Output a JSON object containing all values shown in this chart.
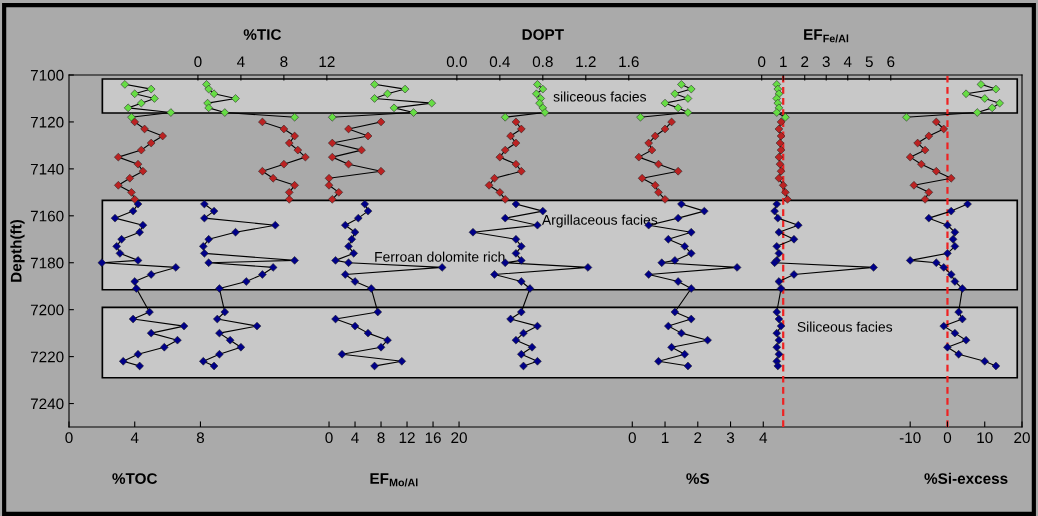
{
  "chart_data": [
    {
      "type": "line",
      "marker": "diamond",
      "xlim": [
        0,
        58
      ],
      "xticks": [
        0,
        4,
        8
      ],
      "xlabel": "%TOC",
      "ylabel": "Depth(ft)",
      "ylim": [
        7250,
        7100
      ],
      "yticks": [
        7100,
        7120,
        7140,
        7160,
        7180,
        7200,
        7220,
        7240
      ],
      "bands": [
        {
          "axis": "y",
          "from": 7101.7,
          "to": 7116.2,
          "color": "#c8c8c8"
        },
        {
          "axis": "y",
          "from": 7153.4,
          "to": 7191.5,
          "color": "#c8c8c8"
        },
        {
          "axis": "y",
          "from": 7199,
          "to": 7229,
          "color": "#c8c8c8"
        }
      ],
      "series": [
        {
          "color": "#66dd44",
          "x": [
            3.4,
            5.0,
            4.0,
            5.2,
            4.4,
            3.6,
            6.2,
            3.8
          ],
          "values": [
            7104,
            7106,
            7108,
            7110,
            7112,
            7114,
            7116,
            7118
          ]
        },
        {
          "color": "#bb2222",
          "x": [
            4.0,
            4.6,
            5.7,
            5.0,
            4.4,
            3.0,
            4.2,
            4.5,
            3.7,
            3.0,
            3.8,
            4.0
          ],
          "values": [
            7120,
            7123,
            7126,
            7129,
            7132,
            7135,
            7138,
            7141,
            7144,
            7147,
            7150,
            7153
          ]
        },
        {
          "color": "#000088",
          "x": [
            4.2,
            3.9,
            2.8,
            4.5,
            4.3,
            3.2,
            2.9,
            3.1,
            4.2,
            2.0,
            6.5,
            5.0,
            4.0,
            4.1,
            4.9,
            3.9,
            7.0,
            5.0,
            6.6,
            5.8,
            4.2,
            3.3,
            4.3
          ],
          "values": [
            7155,
            7158,
            7161,
            7164,
            7167,
            7170,
            7173,
            7176,
            7179,
            7180,
            7182,
            7185,
            7188,
            7191,
            7201,
            7204,
            7207,
            7210,
            7213,
            7216,
            7219,
            7222,
            7224
          ]
        }
      ]
    },
    {
      "type": "line",
      "marker": "diamond",
      "tick_labels": "x",
      "xlim": [
        -12,
        76.7
      ],
      "xticks": [
        0,
        4,
        8,
        12
      ],
      "xlabel": "%TIC",
      "ylim": [
        7250,
        7100
      ],
      "annotations": [
        "Ferroan dolomite rich"
      ],
      "series": [
        {
          "color": "#66dd44",
          "x": [
            0.8,
            1.0,
            1.5,
            3.5,
            0.9,
            1.0,
            2.5,
            9.0
          ],
          "values": [
            7104,
            7106,
            7108,
            7110,
            7112,
            7114,
            7116,
            7118
          ]
        },
        {
          "color": "#bb2222",
          "x": [
            6.0,
            8.0,
            9.0,
            8.5,
            9.3,
            10.0,
            8.0,
            6.0,
            7.0,
            9.0,
            8.5,
            8.5
          ],
          "values": [
            7120,
            7123,
            7126,
            7129,
            7132,
            7135,
            7138,
            7141,
            7144,
            7147,
            7150,
            7153
          ]
        },
        {
          "color": "#000088",
          "x": [
            0.6,
            1.5,
            0.6,
            7.2,
            3.5,
            1.0,
            0.5,
            0.6,
            9.0,
            1.0,
            7.0,
            6.0,
            4.5,
            2.0,
            2.5,
            1.8,
            5.5,
            2.0,
            3.0,
            4.0,
            2.0,
            0.5,
            1.5
          ],
          "values": [
            7155,
            7158,
            7161,
            7164,
            7167,
            7170,
            7173,
            7176,
            7179,
            7180,
            7182,
            7185,
            7188,
            7191,
            7201,
            7204,
            7207,
            7210,
            7213,
            7216,
            7219,
            7222,
            7224
          ]
        }
      ]
    },
    {
      "type": "line",
      "marker": "diamond",
      "tick_labels": "x",
      "xlim": [
        -40,
        106.6
      ],
      "xticks": [
        0,
        4,
        8,
        12,
        16,
        20
      ],
      "xlabel": "EF$_{Mo/Al}$",
      "ylim": [
        7250,
        7100
      ],
      "series": [
        {
          "color": "#66dd44",
          "x": [
            7,
            11.7,
            9,
            7,
            15.8,
            10,
            13,
            0.5
          ],
          "values": [
            7104,
            7106,
            7108,
            7110,
            7112,
            7114,
            7116,
            7118
          ]
        },
        {
          "color": "#bb2222",
          "x": [
            8,
            3,
            6,
            0.5,
            5,
            0.5,
            3,
            8,
            0,
            0,
            1.5,
            0.5
          ],
          "values": [
            7120,
            7123,
            7126,
            7129,
            7132,
            7135,
            7138,
            7141,
            7144,
            7147,
            7150,
            7153
          ]
        },
        {
          "color": "#000088",
          "x": [
            5.5,
            6,
            4.5,
            2.5,
            4,
            3.5,
            3,
            3.8,
            1,
            3,
            17.4,
            2.5,
            4,
            6.5,
            7.5,
            1,
            4,
            6,
            9,
            8,
            2,
            11.2,
            7
          ],
          "values": [
            7155,
            7158,
            7161,
            7164,
            7167,
            7170,
            7173,
            7176,
            7179,
            7180,
            7182,
            7185,
            7188,
            7191,
            7201,
            7204,
            7207,
            7210,
            7213,
            7216,
            7219,
            7222,
            7224
          ]
        }
      ]
    },
    {
      "type": "line",
      "marker": "diamond",
      "tick_labels": "x",
      "xlim": [
        -3.61,
        5.26
      ],
      "xticks": [
        {
          "value": 0,
          "label": "0.0"
        },
        0.4,
        0.8,
        1.2,
        1.6
      ],
      "xlabel": "DOPT",
      "ylim": [
        7250,
        7100
      ],
      "annotations": [
        "siliceous facies",
        "Argillaceous facies",
        "Siliceous facies"
      ],
      "series": [
        {
          "color": "#66dd44",
          "x": [
            0.75,
            0.8,
            0.74,
            0.78,
            0.77,
            0.8,
            0.82,
            0.45
          ],
          "values": [
            7104,
            7106,
            7108,
            7110,
            7112,
            7114,
            7116,
            7118
          ]
        },
        {
          "color": "#bb2222",
          "x": [
            0.55,
            0.6,
            0.5,
            0.55,
            0.45,
            0.4,
            0.55,
            0.6,
            0.35,
            0.3,
            0.4,
            0.45
          ],
          "values": [
            7120,
            7123,
            7126,
            7129,
            7132,
            7135,
            7138,
            7141,
            7144,
            7147,
            7150,
            7153
          ]
        },
        {
          "color": "#000088",
          "x": [
            0.55,
            0.8,
            0.45,
            0.75,
            0.15,
            0.55,
            0.6,
            0.55,
            0.6,
            0.45,
            1.22,
            0.35,
            0.6,
            0.68,
            0.6,
            0.5,
            0.75,
            0.62,
            0.55,
            0.7,
            0.6,
            0.75,
            0.62
          ],
          "values": [
            7155,
            7158,
            7161,
            7164,
            7167,
            7170,
            7173,
            7176,
            7179,
            7180,
            7182,
            7185,
            7188,
            7191,
            7201,
            7204,
            7207,
            7210,
            7213,
            7216,
            7219,
            7222,
            7224
          ]
        }
      ]
    },
    {
      "type": "line",
      "marker": "diamond",
      "tick_labels": "x",
      "xlim": [
        -17.2,
        11.9
      ],
      "xticks": [
        0,
        1,
        2,
        3,
        4
      ],
      "xlabel": "%S",
      "ylim": [
        7250,
        7100
      ],
      "series": [
        {
          "color": "#66dd44",
          "x": [
            1.5,
            1.8,
            1.3,
            1.7,
            1.0,
            1.4,
            1.7,
            0.25
          ],
          "values": [
            7104,
            7106,
            7108,
            7110,
            7112,
            7114,
            7116,
            7118
          ]
        },
        {
          "color": "#bb2222",
          "x": [
            1.2,
            1.0,
            0.7,
            0.5,
            0.6,
            0.2,
            0.8,
            1.4,
            0.3,
            0.7,
            0.8,
            1.0
          ],
          "values": [
            7120,
            7123,
            7126,
            7129,
            7132,
            7135,
            7138,
            7141,
            7144,
            7147,
            7150,
            7153
          ]
        },
        {
          "color": "#000088",
          "x": [
            1.5,
            2.2,
            1.4,
            0.5,
            1.8,
            1.1,
            1.6,
            1.8,
            1.3,
            0.9,
            3.2,
            0.5,
            1.4,
            1.8,
            1.3,
            1.8,
            1.1,
            1.5,
            2.3,
            1.2,
            1.6,
            0.8,
            1.7
          ],
          "values": [
            7155,
            7158,
            7161,
            7164,
            7167,
            7170,
            7173,
            7176,
            7179,
            7180,
            7182,
            7185,
            7188,
            7191,
            7201,
            7204,
            7207,
            7210,
            7213,
            7216,
            7219,
            7222,
            7224
          ]
        }
      ]
    },
    {
      "type": "line",
      "marker": "diamond",
      "tick_labels": "x",
      "xlim": [
        -32.2,
        12.1
      ],
      "xticks": [
        0,
        1,
        2,
        3,
        4,
        5,
        6
      ],
      "xlabel": "EF$_{Fe/Al}$",
      "ylim": [
        7250,
        7100
      ],
      "ref_lines": [
        {
          "axis": "x",
          "value": 1,
          "color": "#ee2222",
          "line_style": "dashed"
        }
      ],
      "series": [
        {
          "color": "#66dd44",
          "x": [
            0.7,
            0.75,
            0.8,
            0.7,
            0.75,
            0.8,
            0.7,
            1.1
          ],
          "values": [
            7104,
            7106,
            7108,
            7110,
            7112,
            7114,
            7116,
            7118
          ]
        },
        {
          "color": "#bb2222",
          "x": [
            0.9,
            0.8,
            0.9,
            0.85,
            0.9,
            0.8,
            0.85,
            0.9,
            0.8,
            1.0,
            1.1,
            1.2
          ],
          "values": [
            7120,
            7123,
            7126,
            7129,
            7132,
            7135,
            7138,
            7141,
            7144,
            7147,
            7150,
            7153
          ]
        },
        {
          "color": "#000088",
          "x": [
            0.7,
            0.6,
            0.75,
            1.7,
            0.8,
            1.5,
            0.7,
            0.8,
            0.7,
            0.6,
            5.2,
            1.5,
            0.8,
            0.9,
            0.7,
            0.8,
            0.9,
            0.7,
            0.8,
            0.7,
            0.8,
            0.7,
            0.75
          ],
          "values": [
            7155,
            7158,
            7161,
            7164,
            7167,
            7170,
            7173,
            7176,
            7179,
            7180,
            7182,
            7185,
            7188,
            7191,
            7201,
            7204,
            7207,
            7210,
            7213,
            7216,
            7219,
            7222,
            7224
          ]
        }
      ]
    },
    {
      "type": "line",
      "marker": "diamond",
      "tick_labels": "x",
      "xlim": [
        -235.7,
        20
      ],
      "xticks": [
        -10,
        0,
        10,
        20
      ],
      "xlabel": "%Si-excess",
      "ylim": [
        7250,
        7100
      ],
      "ref_lines": [
        {
          "axis": "x",
          "value": 0,
          "color": "#ee2222",
          "line_style": "dashed"
        }
      ],
      "series": [
        {
          "color": "#66dd44",
          "x": [
            9,
            13,
            5,
            10,
            14,
            12,
            8,
            -11
          ],
          "values": [
            7104,
            7106,
            7108,
            7110,
            7112,
            7114,
            7116,
            7118
          ]
        },
        {
          "color": "#bb2222",
          "x": [
            -3,
            -1,
            -5,
            -8,
            -6,
            -10,
            -7,
            -3,
            1,
            -9,
            -5,
            -6
          ],
          "values": [
            7120,
            7123,
            7126,
            7129,
            7132,
            7135,
            7138,
            7141,
            7144,
            7147,
            7150,
            7153
          ]
        },
        {
          "color": "#000088",
          "x": [
            5.4,
            1,
            -5,
            0,
            2,
            1.5,
            2,
            0,
            -10,
            -3,
            -1,
            1,
            2,
            4,
            3,
            4,
            -1,
            2,
            5,
            0,
            3,
            10,
            13
          ],
          "values": [
            7155,
            7158,
            7161,
            7164,
            7167,
            7170,
            7173,
            7176,
            7179,
            7180,
            7182,
            7185,
            7188,
            7191,
            7201,
            7204,
            7207,
            7210,
            7213,
            7216,
            7219,
            7222,
            7224
          ]
        }
      ]
    }
  ]
}
